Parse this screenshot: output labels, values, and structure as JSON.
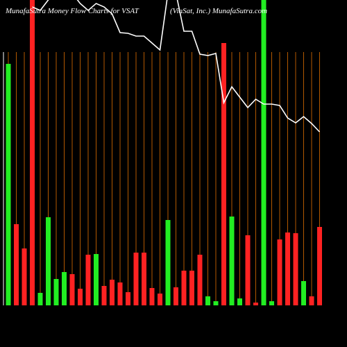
{
  "chart_data": {
    "type": "bar-line",
    "title": "MunafaSutra Money Flow Charts for VSAT",
    "subtitle": "(ViaSat, Inc.) MunafaSutra.com",
    "ylim": [
      0,
      440
    ],
    "bars": {
      "values": [
        348,
        117,
        82,
        440,
        18,
        127,
        38,
        48,
        45,
        24,
        73,
        74,
        28,
        37,
        33,
        19,
        76,
        76,
        25,
        17,
        123,
        26,
        50,
        50,
        73,
        13,
        6,
        378,
        128,
        10,
        101,
        4,
        440,
        6,
        95,
        105,
        104,
        35,
        13,
        113
      ],
      "colors": [
        "#22ee22",
        "#ff2222",
        "#ff2222",
        "#ff2222",
        "#22ee22",
        "#22ee22",
        "#22ee22",
        "#22ee22",
        "#ff2222",
        "#ff2222",
        "#ff2222",
        "#22ee22",
        "#ff2222",
        "#ff2222",
        "#ff2222",
        "#ff2222",
        "#ff2222",
        "#ff2222",
        "#ff2222",
        "#ff2222",
        "#22ee22",
        "#ff2222",
        "#ff2222",
        "#ff2222",
        "#ff2222",
        "#22ee22",
        "#22ee22",
        "#ff2222",
        "#22ee22",
        "#22ee22",
        "#ff2222",
        "#ff2222",
        "#22ee22",
        "#22ee22",
        "#ff2222",
        "#ff2222",
        "#ff2222",
        "#22ee22",
        "#ff2222",
        "#ff2222"
      ]
    },
    "line": {
      "color": "#ffffff",
      "values": [
        null,
        null,
        null,
        430,
        425,
        440,
        450,
        450,
        450,
        435,
        425,
        435,
        430,
        420,
        393,
        392,
        388,
        388,
        378,
        368,
        450,
        450,
        395,
        395,
        362,
        360,
        363,
        292,
        315,
        300,
        285,
        297,
        290,
        290,
        288,
        270,
        263,
        272,
        262,
        250
      ]
    }
  }
}
